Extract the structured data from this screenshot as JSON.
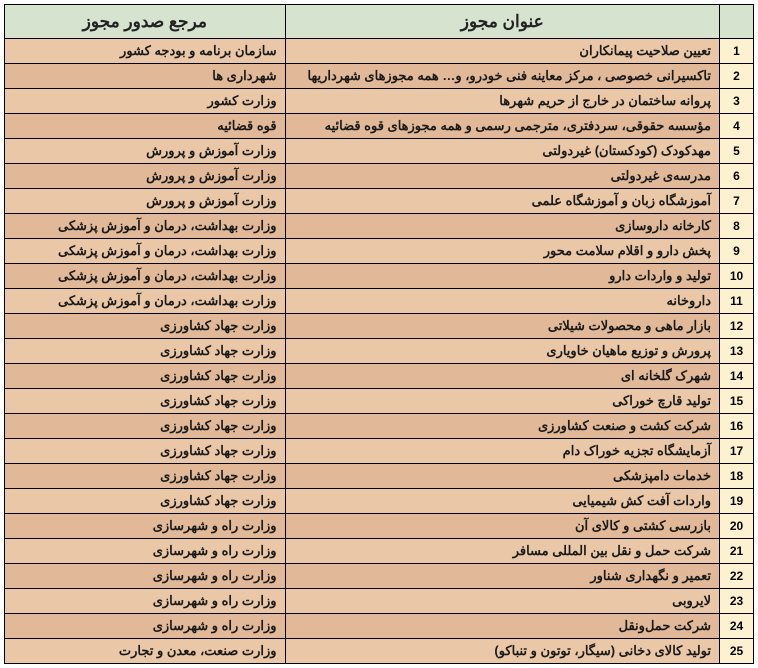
{
  "header": {
    "titleCol": "عنوان مجوز",
    "refCol": "مرجع صدور مجوز"
  },
  "colors": {
    "header_bg": "#d5e3cf",
    "num_bg": "#fdf2d0",
    "row_a": "#eac7a7",
    "row_b": "#e1b998",
    "border": "#000000"
  },
  "rows": [
    {
      "n": "1",
      "title": "تعیین صلاحیت پیمانکاران",
      "ref": "سازمان برنامه و بودجه کشور"
    },
    {
      "n": "2",
      "title": "تاکسیرانی خصوصی ، مرکز معاینه فنی خودرو، و… همه مجوزهای شهرداریها",
      "ref": "شهرداری ها"
    },
    {
      "n": "3",
      "title": "پروانه ساختمان در خارج از حریم شهرها",
      "ref": "وزارت کشور"
    },
    {
      "n": "4",
      "title": "مؤسسه حقوقی، سردفتری، مترجمی رسمی و همه مجوزهای قوه قضائیه",
      "ref": "قوه قضائیه"
    },
    {
      "n": "5",
      "title": "مهدکودک (کودکستان) غیردولتی",
      "ref": "وزارت آموزش و پرورش"
    },
    {
      "n": "6",
      "title": "مدرسه‌ی غیردولتی",
      "ref": "وزارت آموزش و پرورش"
    },
    {
      "n": "7",
      "title": "آموزشگاه زبان و آموزشگاه علمی",
      "ref": "وزارت آموزش و پرورش"
    },
    {
      "n": "8",
      "title": "کارخانه داروسازی",
      "ref": "وزارت بهداشت، درمان و آموزش پزشکی"
    },
    {
      "n": "9",
      "title": "پخش دارو و اقلام سلامت محور",
      "ref": "وزارت بهداشت، درمان و آموزش پزشکی"
    },
    {
      "n": "10",
      "title": "تولید و واردات دارو",
      "ref": "وزارت بهداشت، درمان و آموزش پزشکی"
    },
    {
      "n": "11",
      "title": "داروخانه",
      "ref": "وزارت بهداشت، درمان و آموزش پزشکی"
    },
    {
      "n": "12",
      "title": "بازار ماهی و محصولات شیلاتی",
      "ref": "وزارت جهاد کشاورزی"
    },
    {
      "n": "13",
      "title": "پرورش و توزیع ماهیان خاویاری",
      "ref": "وزارت جهاد کشاورزی"
    },
    {
      "n": "14",
      "title": "شهرک گلخانه ای",
      "ref": "وزارت جهاد کشاورزی"
    },
    {
      "n": "15",
      "title": "تولید قارچ خوراکی",
      "ref": "وزارت جهاد کشاورزی"
    },
    {
      "n": "16",
      "title": "شرکت کشت و صنعت کشاورزی",
      "ref": "وزارت جهاد کشاورزی"
    },
    {
      "n": "17",
      "title": "آزمایشگاه تجزیه خوراک دام",
      "ref": "وزارت جهاد کشاورزی"
    },
    {
      "n": "18",
      "title": "خدمات دامپزشکی",
      "ref": "وزارت جهاد کشاورزی"
    },
    {
      "n": "19",
      "title": "واردات آفت کش شیمیایی",
      "ref": "وزارت جهاد کشاورزی"
    },
    {
      "n": "20",
      "title": "بازرسی کشتی و کالای آن",
      "ref": "وزارت راه و شهرسازی"
    },
    {
      "n": "21",
      "title": "شرکت حمل و نقل بین المللی مسافر",
      "ref": "وزارت راه و شهرسازی"
    },
    {
      "n": "22",
      "title": "تعمیر و نگهداری شناور",
      "ref": "وزارت راه و شهرسازی"
    },
    {
      "n": "23",
      "title": "لایروبی",
      "ref": "وزارت راه و شهرسازی"
    },
    {
      "n": "24",
      "title": "شرکت حمل‌ونقل",
      "ref": "وزارت راه و شهرسازی"
    },
    {
      "n": "25",
      "title": "تولید کالای دخانی (سیگار، توتون و تنباکو)",
      "ref": "وزارت صنعت، معدن و تجارت"
    }
  ]
}
